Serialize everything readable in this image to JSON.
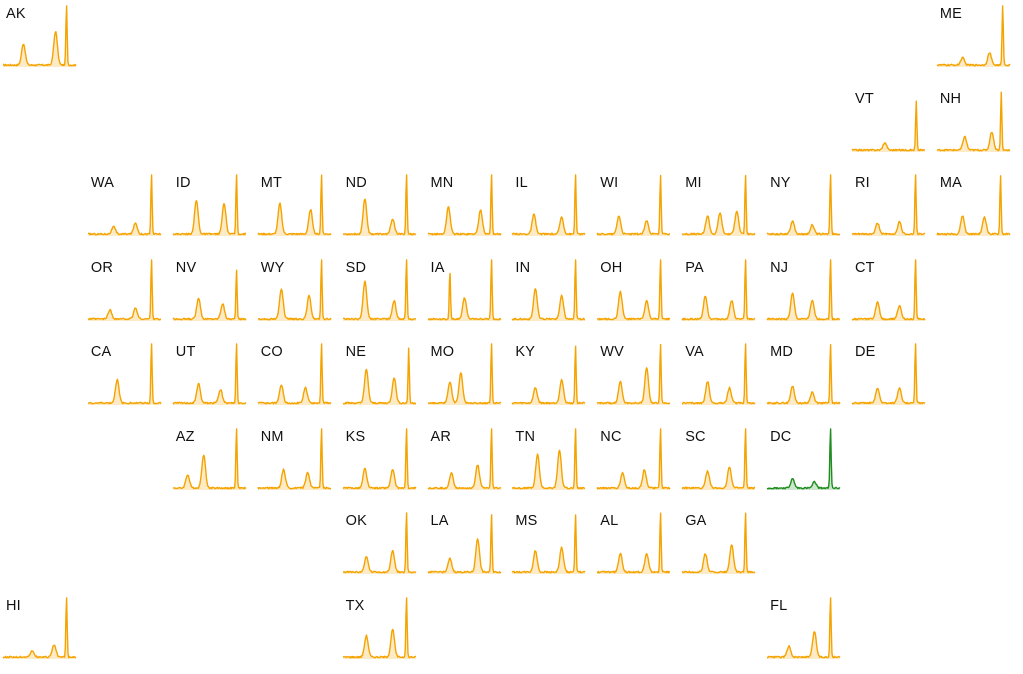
{
  "chart_data": {
    "type": "area",
    "layout": "state tile grid map of small-multiple sparklines",
    "title": "",
    "xlabel": "",
    "ylabel": "",
    "colors": {
      "default": "#F5A300",
      "highlight": "#1E8C1E"
    },
    "highlighted_state": "DC",
    "tiles": [
      {
        "state": "AK",
        "row": 0,
        "col": 0,
        "peaks": [
          [
            0.28,
            0.35
          ],
          [
            0.72,
            0.55
          ],
          [
            0.87,
            1.0
          ]
        ]
      },
      {
        "state": "ME",
        "row": 0,
        "col": 11,
        "peaks": [
          [
            0.35,
            0.12
          ],
          [
            0.72,
            0.2
          ],
          [
            0.9,
            1.0
          ]
        ]
      },
      {
        "state": "VT",
        "row": 1,
        "col": 10,
        "peaks": [
          [
            0.45,
            0.12
          ],
          [
            0.88,
            0.8
          ]
        ]
      },
      {
        "state": "NH",
        "row": 1,
        "col": 11,
        "peaks": [
          [
            0.38,
            0.22
          ],
          [
            0.75,
            0.3
          ],
          [
            0.88,
            0.95
          ]
        ]
      },
      {
        "state": "WA",
        "row": 2,
        "col": 1,
        "peaks": [
          [
            0.35,
            0.12
          ],
          [
            0.65,
            0.18
          ],
          [
            0.87,
            1.0
          ]
        ]
      },
      {
        "state": "ID",
        "row": 2,
        "col": 2,
        "peaks": [
          [
            0.32,
            0.55
          ],
          [
            0.7,
            0.5
          ],
          [
            0.87,
            1.0
          ]
        ]
      },
      {
        "state": "MT",
        "row": 2,
        "col": 3,
        "peaks": [
          [
            0.3,
            0.5
          ],
          [
            0.72,
            0.4
          ],
          [
            0.87,
            0.98
          ]
        ]
      },
      {
        "state": "ND",
        "row": 2,
        "col": 4,
        "peaks": [
          [
            0.3,
            0.58
          ],
          [
            0.68,
            0.25
          ],
          [
            0.87,
            1.0
          ]
        ]
      },
      {
        "state": "MN",
        "row": 2,
        "col": 5,
        "peaks": [
          [
            0.28,
            0.45
          ],
          [
            0.72,
            0.4
          ],
          [
            0.87,
            1.0
          ]
        ]
      },
      {
        "state": "IL",
        "row": 2,
        "col": 6,
        "peaks": [
          [
            0.3,
            0.32
          ],
          [
            0.68,
            0.28
          ],
          [
            0.87,
            1.0
          ]
        ]
      },
      {
        "state": "WI",
        "row": 2,
        "col": 7,
        "peaks": [
          [
            0.3,
            0.3
          ],
          [
            0.68,
            0.22
          ],
          [
            0.87,
            0.98
          ]
        ]
      },
      {
        "state": "MI",
        "row": 2,
        "col": 8,
        "peaks": [
          [
            0.35,
            0.3
          ],
          [
            0.52,
            0.35
          ],
          [
            0.75,
            0.38
          ],
          [
            0.87,
            0.98
          ]
        ]
      },
      {
        "state": "NY",
        "row": 2,
        "col": 9,
        "peaks": [
          [
            0.35,
            0.22
          ],
          [
            0.62,
            0.15
          ],
          [
            0.87,
            1.0
          ]
        ]
      },
      {
        "state": "RI",
        "row": 2,
        "col": 10,
        "peaks": [
          [
            0.35,
            0.18
          ],
          [
            0.65,
            0.2
          ],
          [
            0.87,
            1.0
          ]
        ]
      },
      {
        "state": "MA",
        "row": 2,
        "col": 11,
        "peaks": [
          [
            0.35,
            0.3
          ],
          [
            0.65,
            0.28
          ],
          [
            0.87,
            0.98
          ]
        ]
      },
      {
        "state": "OR",
        "row": 3,
        "col": 1,
        "peaks": [
          [
            0.3,
            0.15
          ],
          [
            0.65,
            0.18
          ],
          [
            0.87,
            1.0
          ]
        ]
      },
      {
        "state": "NV",
        "row": 3,
        "col": 2,
        "peaks": [
          [
            0.35,
            0.35
          ],
          [
            0.68,
            0.25
          ],
          [
            0.87,
            0.8
          ]
        ]
      },
      {
        "state": "WY",
        "row": 3,
        "col": 3,
        "peaks": [
          [
            0.32,
            0.5
          ],
          [
            0.7,
            0.38
          ],
          [
            0.87,
            0.98
          ]
        ]
      },
      {
        "state": "SD",
        "row": 3,
        "col": 4,
        "peaks": [
          [
            0.3,
            0.62
          ],
          [
            0.7,
            0.3
          ],
          [
            0.87,
            1.0
          ]
        ]
      },
      {
        "state": "IA",
        "row": 3,
        "col": 5,
        "peaks": [
          [
            0.3,
            0.8
          ],
          [
            0.5,
            0.35
          ],
          [
            0.87,
            0.98
          ]
        ]
      },
      {
        "state": "IN",
        "row": 3,
        "col": 6,
        "peaks": [
          [
            0.32,
            0.5
          ],
          [
            0.68,
            0.38
          ],
          [
            0.87,
            0.98
          ]
        ]
      },
      {
        "state": "OH",
        "row": 3,
        "col": 7,
        "peaks": [
          [
            0.32,
            0.45
          ],
          [
            0.68,
            0.3
          ],
          [
            0.87,
            0.98
          ]
        ]
      },
      {
        "state": "PA",
        "row": 3,
        "col": 8,
        "peaks": [
          [
            0.32,
            0.38
          ],
          [
            0.68,
            0.3
          ],
          [
            0.87,
            1.0
          ]
        ]
      },
      {
        "state": "NJ",
        "row": 3,
        "col": 9,
        "peaks": [
          [
            0.35,
            0.42
          ],
          [
            0.62,
            0.3
          ],
          [
            0.87,
            1.0
          ]
        ]
      },
      {
        "state": "CT",
        "row": 3,
        "col": 10,
        "peaks": [
          [
            0.35,
            0.28
          ],
          [
            0.65,
            0.22
          ],
          [
            0.87,
            1.0
          ]
        ]
      },
      {
        "state": "CA",
        "row": 4,
        "col": 1,
        "peaks": [
          [
            0.4,
            0.38
          ],
          [
            0.87,
            1.0
          ]
        ]
      },
      {
        "state": "UT",
        "row": 4,
        "col": 2,
        "peaks": [
          [
            0.35,
            0.32
          ],
          [
            0.65,
            0.22
          ],
          [
            0.87,
            1.0
          ]
        ]
      },
      {
        "state": "CO",
        "row": 4,
        "col": 3,
        "peaks": [
          [
            0.32,
            0.3
          ],
          [
            0.65,
            0.25
          ],
          [
            0.87,
            1.0
          ]
        ]
      },
      {
        "state": "NE",
        "row": 4,
        "col": 4,
        "peaks": [
          [
            0.32,
            0.55
          ],
          [
            0.7,
            0.42
          ],
          [
            0.9,
            0.9
          ]
        ]
      },
      {
        "state": "MO",
        "row": 4,
        "col": 5,
        "peaks": [
          [
            0.3,
            0.35
          ],
          [
            0.45,
            0.5
          ],
          [
            0.87,
            1.0
          ]
        ]
      },
      {
        "state": "KY",
        "row": 4,
        "col": 6,
        "peaks": [
          [
            0.32,
            0.25
          ],
          [
            0.68,
            0.38
          ],
          [
            0.87,
            0.95
          ]
        ]
      },
      {
        "state": "WV",
        "row": 4,
        "col": 7,
        "peaks": [
          [
            0.32,
            0.35
          ],
          [
            0.68,
            0.58
          ],
          [
            0.87,
            0.98
          ]
        ]
      },
      {
        "state": "VA",
        "row": 4,
        "col": 8,
        "peaks": [
          [
            0.35,
            0.35
          ],
          [
            0.65,
            0.25
          ],
          [
            0.87,
            1.0
          ]
        ]
      },
      {
        "state": "MD",
        "row": 4,
        "col": 9,
        "peaks": [
          [
            0.35,
            0.28
          ],
          [
            0.62,
            0.18
          ],
          [
            0.87,
            0.98
          ]
        ]
      },
      {
        "state": "DE",
        "row": 4,
        "col": 10,
        "peaks": [
          [
            0.35,
            0.25
          ],
          [
            0.65,
            0.25
          ],
          [
            0.87,
            1.0
          ]
        ]
      },
      {
        "state": "AZ",
        "row": 5,
        "col": 2,
        "peaks": [
          [
            0.2,
            0.22
          ],
          [
            0.42,
            0.55
          ],
          [
            0.87,
            1.0
          ]
        ]
      },
      {
        "state": "NM",
        "row": 5,
        "col": 3,
        "peaks": [
          [
            0.35,
            0.3
          ],
          [
            0.68,
            0.25
          ],
          [
            0.87,
            1.0
          ]
        ]
      },
      {
        "state": "KS",
        "row": 5,
        "col": 4,
        "peaks": [
          [
            0.3,
            0.32
          ],
          [
            0.68,
            0.3
          ],
          [
            0.87,
            1.0
          ]
        ]
      },
      {
        "state": "AR",
        "row": 5,
        "col": 5,
        "peaks": [
          [
            0.32,
            0.25
          ],
          [
            0.68,
            0.38
          ],
          [
            0.87,
            1.0
          ]
        ]
      },
      {
        "state": "TN",
        "row": 5,
        "col": 6,
        "peaks": [
          [
            0.35,
            0.55
          ],
          [
            0.65,
            0.62
          ],
          [
            0.87,
            1.0
          ]
        ]
      },
      {
        "state": "NC",
        "row": 5,
        "col": 7,
        "peaks": [
          [
            0.35,
            0.25
          ],
          [
            0.65,
            0.3
          ],
          [
            0.87,
            1.0
          ]
        ]
      },
      {
        "state": "SC",
        "row": 5,
        "col": 8,
        "peaks": [
          [
            0.35,
            0.28
          ],
          [
            0.65,
            0.35
          ],
          [
            0.87,
            1.0
          ]
        ]
      },
      {
        "state": "DC",
        "row": 5,
        "col": 9,
        "peaks": [
          [
            0.35,
            0.15
          ],
          [
            0.65,
            0.1
          ],
          [
            0.87,
            1.0
          ]
        ]
      },
      {
        "state": "OK",
        "row": 6,
        "col": 4,
        "peaks": [
          [
            0.32,
            0.25
          ],
          [
            0.68,
            0.35
          ],
          [
            0.87,
            1.0
          ]
        ]
      },
      {
        "state": "LA",
        "row": 6,
        "col": 5,
        "peaks": [
          [
            0.3,
            0.22
          ],
          [
            0.68,
            0.55
          ],
          [
            0.87,
            0.95
          ]
        ]
      },
      {
        "state": "MS",
        "row": 6,
        "col": 6,
        "peaks": [
          [
            0.32,
            0.35
          ],
          [
            0.68,
            0.4
          ],
          [
            0.87,
            0.95
          ]
        ]
      },
      {
        "state": "AL",
        "row": 6,
        "col": 7,
        "peaks": [
          [
            0.32,
            0.3
          ],
          [
            0.68,
            0.3
          ],
          [
            0.87,
            0.98
          ]
        ]
      },
      {
        "state": "GA",
        "row": 6,
        "col": 8,
        "peaks": [
          [
            0.32,
            0.3
          ],
          [
            0.68,
            0.45
          ],
          [
            0.87,
            0.98
          ]
        ]
      },
      {
        "state": "HI",
        "row": 7,
        "col": 0,
        "peaks": [
          [
            0.4,
            0.1
          ],
          [
            0.7,
            0.2
          ],
          [
            0.87,
            1.0
          ]
        ]
      },
      {
        "state": "TX",
        "row": 7,
        "col": 4,
        "peaks": [
          [
            0.32,
            0.35
          ],
          [
            0.68,
            0.45
          ],
          [
            0.87,
            1.0
          ]
        ]
      },
      {
        "state": "FL",
        "row": 7,
        "col": 9,
        "peaks": [
          [
            0.3,
            0.18
          ],
          [
            0.65,
            0.42
          ],
          [
            0.87,
            1.0
          ]
        ]
      }
    ]
  }
}
